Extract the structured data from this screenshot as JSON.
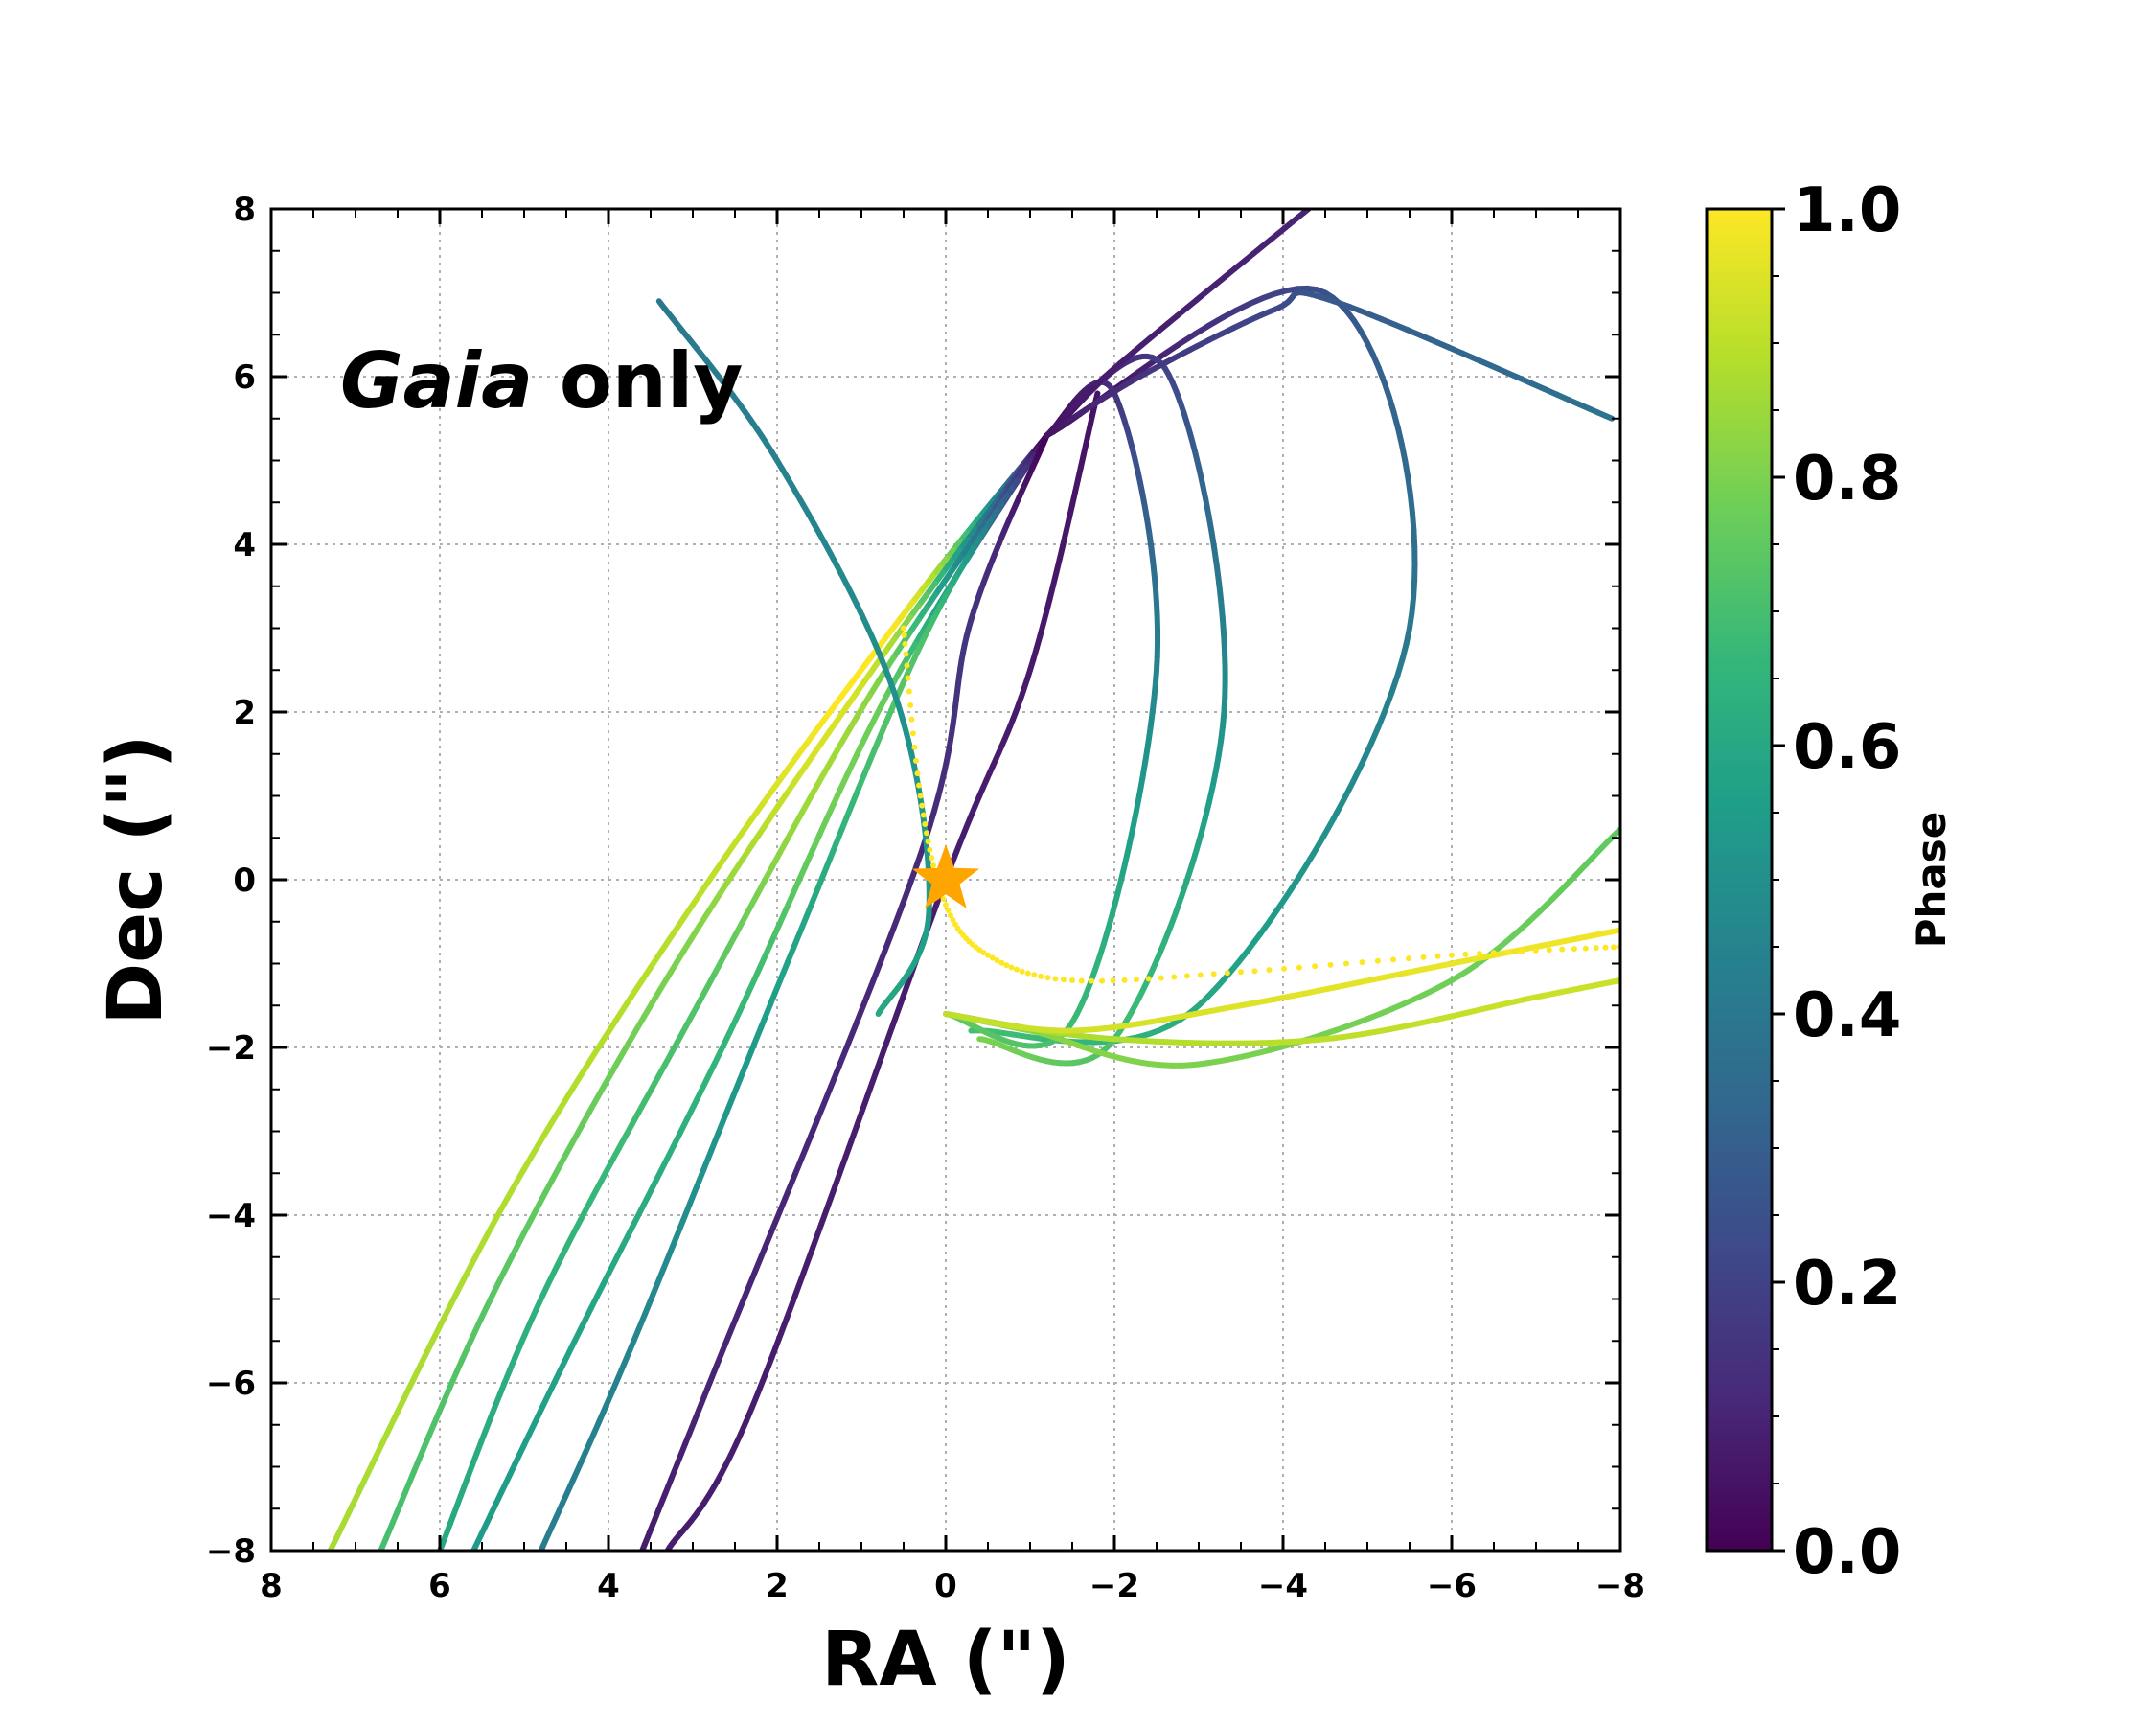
{
  "chart_data": {
    "type": "scatter",
    "title": "",
    "annotation": {
      "italic": "Gaia",
      "text": " only",
      "position": "top-left"
    },
    "xlabel": "RA (\")",
    "ylabel": "Dec (\")",
    "xlim": [
      8,
      -8
    ],
    "ylim": [
      -8,
      8
    ],
    "x_ticks": [
      8,
      6,
      4,
      2,
      0,
      -2,
      -4,
      -6,
      -8
    ],
    "y_ticks": [
      8,
      6,
      4,
      2,
      0,
      -2,
      -4,
      -6,
      -8
    ],
    "x_tick_labels": [
      "8",
      "6",
      "4",
      "2",
      "0",
      "−2",
      "−4",
      "−6",
      "−8"
    ],
    "y_tick_labels": [
      "8",
      "6",
      "4",
      "2",
      "0",
      "−2",
      "−4",
      "−6",
      "−8"
    ],
    "grid": true,
    "star": {
      "x": 0,
      "y": 0,
      "color": "#ffa500",
      "symbol": "star-icon"
    },
    "colorbar": {
      "label": "Phase",
      "range": [
        0,
        1
      ],
      "ticks": [
        0.0,
        0.2,
        0.4,
        0.6,
        0.8,
        1.0
      ],
      "tick_labels": [
        "0.0",
        "0.2",
        "0.4",
        "0.6",
        "0.8",
        "1.0"
      ],
      "colormap": "viridis",
      "stops": [
        "#440154",
        "#482878",
        "#3e4989",
        "#31688e",
        "#26828e",
        "#1f9e89",
        "#35b779",
        "#6ece58",
        "#b5de2b",
        "#fde725"
      ]
    },
    "orbit_node": {
      "x": -1.2,
      "y": 5.3
    },
    "series": [
      {
        "name": "orbit-1",
        "x": [
          -1.2,
          0.4,
          2.8,
          5.2,
          7.3
        ],
        "y": [
          5.3,
          3.3,
          0.0,
          -3.8,
          -8.0
        ],
        "phase": [
          0.0,
          0.95,
          0.9,
          0.88,
          0.87
        ]
      },
      {
        "name": "orbit-2",
        "x": [
          -1.2,
          0.8,
          3.2,
          5.3,
          6.7
        ],
        "y": [
          5.3,
          2.6,
          -1.0,
          -4.8,
          -8.0
        ],
        "phase": [
          0.0,
          0.9,
          0.8,
          0.74,
          0.7
        ]
      },
      {
        "name": "orbit-3",
        "x": [
          -1.2,
          0.9,
          3.0,
          4.8,
          6.0
        ],
        "y": [
          5.3,
          2.2,
          -1.6,
          -5.0,
          -8.0
        ],
        "phase": [
          0.0,
          0.82,
          0.72,
          0.64,
          0.6
        ]
      },
      {
        "name": "orbit-4",
        "x": [
          -1.2,
          0.7,
          2.6,
          4.4,
          5.6
        ],
        "y": [
          5.3,
          2.2,
          -1.9,
          -5.5,
          -8.0
        ],
        "phase": [
          0.0,
          0.75,
          0.66,
          0.58,
          0.54
        ]
      },
      {
        "name": "orbit-5",
        "x": [
          -1.2,
          0.2,
          1.8,
          3.7,
          4.8
        ],
        "y": [
          5.3,
          3.0,
          -0.8,
          -5.5,
          -8.0
        ],
        "phase": [
          0.0,
          0.7,
          0.58,
          0.46,
          0.42
        ]
      },
      {
        "name": "orbit-6",
        "x": [
          -1.2,
          -0.3,
          0.3,
          2.8,
          3.6
        ],
        "y": [
          5.3,
          3.1,
          0.3,
          -6.0,
          -8.0
        ],
        "phase": [
          0.0,
          0.15,
          0.12,
          0.1,
          0.08
        ]
      },
      {
        "name": "orbit-7",
        "x": [
          -1.8,
          -1.0,
          0.0,
          2.3,
          3.3
        ],
        "y": [
          5.8,
          2.5,
          0.0,
          -6.3,
          -8.0
        ],
        "phase": [
          0.05,
          0.07,
          0.08,
          0.08,
          0.08
        ]
      },
      {
        "name": "orbit-8",
        "x": [
          -1.2,
          -4.5,
          -5.5,
          -3.0,
          -0.3
        ],
        "y": [
          5.3,
          7.0,
          3.0,
          -1.5,
          -1.8
        ],
        "phase": [
          0.0,
          0.25,
          0.4,
          0.6,
          0.7
        ]
      },
      {
        "name": "orbit-9",
        "x": [
          -1.2,
          -2.6,
          -3.3,
          -2.0,
          -0.4
        ],
        "y": [
          5.3,
          6.1,
          2.0,
          -1.9,
          -1.9
        ],
        "phase": [
          0.02,
          0.2,
          0.5,
          0.7,
          0.8
        ]
      },
      {
        "name": "orbit-10",
        "x": [
          -1.2,
          -2.0,
          -2.5,
          -1.5,
          0.0
        ],
        "y": [
          5.3,
          5.8,
          2.5,
          -1.7,
          -1.6
        ],
        "phase": [
          0.02,
          0.15,
          0.45,
          0.68,
          0.75
        ]
      },
      {
        "name": "orbit-11",
        "x": [
          0.8,
          0.2,
          0.6,
          2.0,
          3.4
        ],
        "y": [
          -1.6,
          -0.4,
          2.2,
          5.0,
          6.9
        ],
        "phase": [
          0.6,
          0.55,
          0.5,
          0.44,
          0.4
        ]
      },
      {
        "name": "orbit-12",
        "x": [
          -1.2,
          -2.0,
          -4.3
        ],
        "y": [
          5.3,
          6.1,
          8.0
        ],
        "phase": [
          0.05,
          0.08,
          0.1
        ]
      },
      {
        "name": "orbit-13",
        "x": [
          -1.2,
          -2.3,
          -3.9,
          -4.6,
          -7.9
        ],
        "y": [
          5.3,
          6.0,
          6.8,
          6.9,
          5.5
        ],
        "phase": [
          0.05,
          0.15,
          0.22,
          0.28,
          0.38
        ]
      },
      {
        "name": "orbit-14",
        "x": [
          0.0,
          -1.0,
          -3.0,
          -6.0,
          -8.0
        ],
        "y": [
          -1.6,
          -1.8,
          -2.2,
          -1.2,
          0.6
        ],
        "phase": [
          0.8,
          0.82,
          0.8,
          0.78,
          0.75
        ]
      },
      {
        "name": "orbit-15",
        "x": [
          0.0,
          -2.0,
          -4.5,
          -7.0,
          -8.0
        ],
        "y": [
          -1.6,
          -1.9,
          -1.9,
          -1.4,
          -1.2
        ],
        "phase": [
          0.85,
          0.88,
          0.9,
          0.92,
          0.92
        ]
      },
      {
        "name": "orbit-16",
        "x": [
          0.0,
          -1.5,
          -3.5,
          -6.0,
          -8.0
        ],
        "y": [
          -1.6,
          -1.8,
          -1.5,
          -1.0,
          -0.6
        ],
        "phase": [
          0.9,
          0.93,
          0.95,
          0.97,
          0.98
        ]
      }
    ],
    "dotted_series": {
      "name": "phase-1-dots",
      "x": [
        0.5,
        0.3,
        0.0,
        -0.5,
        -1.5,
        -3.5,
        -6.0,
        -8.0
      ],
      "y": [
        3.0,
        1.0,
        -0.3,
        -0.9,
        -1.2,
        -1.1,
        -0.9,
        -0.8
      ],
      "phase": 1.0
    }
  }
}
